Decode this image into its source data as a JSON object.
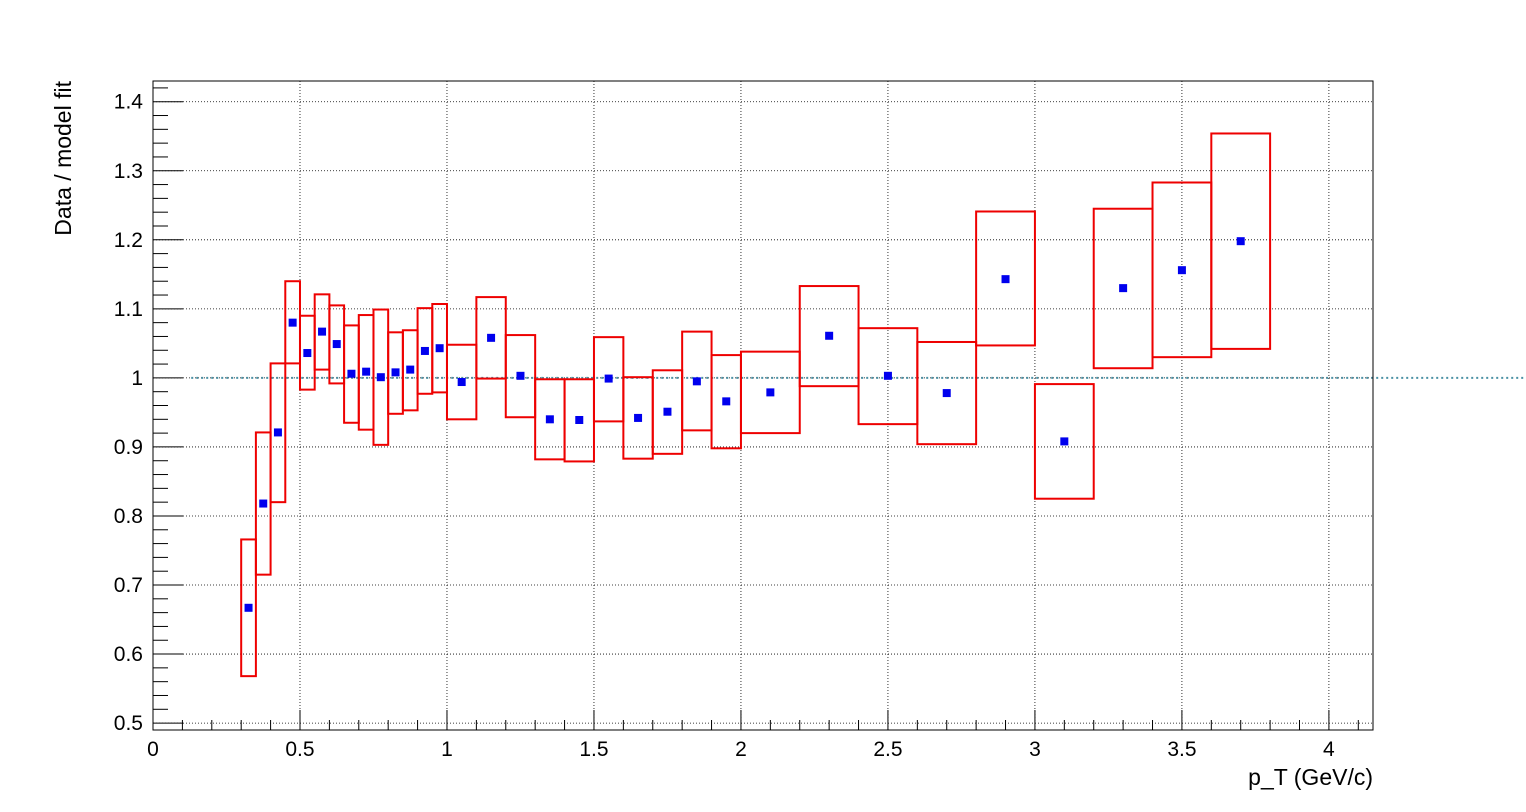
{
  "chart_data": {
    "type": "scatter",
    "title": "",
    "xlabel": "p_T (GeV/c)",
    "ylabel": "Data / model fit",
    "xlim": [
      0,
      4.15
    ],
    "ylim": [
      0.49,
      1.43
    ],
    "x_ticks": [
      0,
      0.5,
      1,
      1.5,
      2,
      2.5,
      3,
      3.5,
      4
    ],
    "x_tick_labels": [
      "0",
      "0.5",
      "1",
      "1.5",
      "2",
      "2.5",
      "3",
      "3.5",
      "4"
    ],
    "y_ticks": [
      0.5,
      0.6,
      0.7,
      0.8,
      0.9,
      1.0,
      1.1,
      1.2,
      1.3,
      1.4
    ],
    "y_tick_labels": [
      "0.5",
      "0.6",
      "0.7",
      "0.8",
      "0.9",
      "1",
      "1.1",
      "1.2",
      "1.3",
      "1.4"
    ],
    "grid": true,
    "reference_line": 1.0,
    "colors": {
      "points": "#0000ee",
      "boxes": "#ee0000",
      "reference": "#4a90a4"
    },
    "points": [
      {
        "x": 0.325,
        "y": 0.667,
        "xlo": 0.3,
        "xhi": 0.35,
        "ylo": 0.568,
        "yhi": 0.766
      },
      {
        "x": 0.375,
        "y": 0.818,
        "xlo": 0.35,
        "xhi": 0.4,
        "ylo": 0.715,
        "yhi": 0.921
      },
      {
        "x": 0.425,
        "y": 0.921,
        "xlo": 0.4,
        "xhi": 0.45,
        "ylo": 0.82,
        "yhi": 1.021
      },
      {
        "x": 0.475,
        "y": 1.08,
        "xlo": 0.45,
        "xhi": 0.5,
        "ylo": 1.021,
        "yhi": 1.14
      },
      {
        "x": 0.525,
        "y": 1.036,
        "xlo": 0.5,
        "xhi": 0.55,
        "ylo": 0.983,
        "yhi": 1.09
      },
      {
        "x": 0.575,
        "y": 1.067,
        "xlo": 0.55,
        "xhi": 0.6,
        "ylo": 1.012,
        "yhi": 1.121
      },
      {
        "x": 0.625,
        "y": 1.049,
        "xlo": 0.6,
        "xhi": 0.65,
        "ylo": 0.992,
        "yhi": 1.105
      },
      {
        "x": 0.675,
        "y": 1.006,
        "xlo": 0.65,
        "xhi": 0.7,
        "ylo": 0.935,
        "yhi": 1.076
      },
      {
        "x": 0.725,
        "y": 1.009,
        "xlo": 0.7,
        "xhi": 0.75,
        "ylo": 0.925,
        "yhi": 1.091
      },
      {
        "x": 0.775,
        "y": 1.001,
        "xlo": 0.75,
        "xhi": 0.8,
        "ylo": 0.903,
        "yhi": 1.099
      },
      {
        "x": 0.825,
        "y": 1.008,
        "xlo": 0.8,
        "xhi": 0.85,
        "ylo": 0.948,
        "yhi": 1.066
      },
      {
        "x": 0.875,
        "y": 1.012,
        "xlo": 0.85,
        "xhi": 0.9,
        "ylo": 0.953,
        "yhi": 1.069
      },
      {
        "x": 0.925,
        "y": 1.039,
        "xlo": 0.9,
        "xhi": 0.95,
        "ylo": 0.977,
        "yhi": 1.101
      },
      {
        "x": 0.975,
        "y": 1.043,
        "xlo": 0.95,
        "xhi": 1.0,
        "ylo": 0.979,
        "yhi": 1.107
      },
      {
        "x": 1.05,
        "y": 0.994,
        "xlo": 1.0,
        "xhi": 1.1,
        "ylo": 0.94,
        "yhi": 1.048
      },
      {
        "x": 1.15,
        "y": 1.058,
        "xlo": 1.1,
        "xhi": 1.2,
        "ylo": 0.999,
        "yhi": 1.117
      },
      {
        "x": 1.25,
        "y": 1.003,
        "xlo": 1.2,
        "xhi": 1.3,
        "ylo": 0.943,
        "yhi": 1.062
      },
      {
        "x": 1.35,
        "y": 0.94,
        "xlo": 1.3,
        "xhi": 1.4,
        "ylo": 0.882,
        "yhi": 0.998
      },
      {
        "x": 1.45,
        "y": 0.939,
        "xlo": 1.4,
        "xhi": 1.5,
        "ylo": 0.879,
        "yhi": 0.998
      },
      {
        "x": 1.55,
        "y": 0.999,
        "xlo": 1.5,
        "xhi": 1.6,
        "ylo": 0.937,
        "yhi": 1.059
      },
      {
        "x": 1.65,
        "y": 0.942,
        "xlo": 1.6,
        "xhi": 1.7,
        "ylo": 0.883,
        "yhi": 1.001
      },
      {
        "x": 1.75,
        "y": 0.951,
        "xlo": 1.7,
        "xhi": 1.8,
        "ylo": 0.89,
        "yhi": 1.011
      },
      {
        "x": 1.85,
        "y": 0.995,
        "xlo": 1.8,
        "xhi": 1.9,
        "ylo": 0.924,
        "yhi": 1.067
      },
      {
        "x": 1.95,
        "y": 0.966,
        "xlo": 1.9,
        "xhi": 2.0,
        "ylo": 0.898,
        "yhi": 1.033
      },
      {
        "x": 2.1,
        "y": 0.979,
        "xlo": 2.0,
        "xhi": 2.2,
        "ylo": 0.92,
        "yhi": 1.038
      },
      {
        "x": 2.3,
        "y": 1.061,
        "xlo": 2.2,
        "xhi": 2.4,
        "ylo": 0.988,
        "yhi": 1.133
      },
      {
        "x": 2.5,
        "y": 1.003,
        "xlo": 2.4,
        "xhi": 2.6,
        "ylo": 0.933,
        "yhi": 1.072
      },
      {
        "x": 2.7,
        "y": 0.978,
        "xlo": 2.6,
        "xhi": 2.8,
        "ylo": 0.904,
        "yhi": 1.052
      },
      {
        "x": 2.9,
        "y": 1.143,
        "xlo": 2.8,
        "xhi": 3.0,
        "ylo": 1.047,
        "yhi": 1.241
      },
      {
        "x": 3.1,
        "y": 0.908,
        "xlo": 3.0,
        "xhi": 3.2,
        "ylo": 0.825,
        "yhi": 0.991
      },
      {
        "x": 3.3,
        "y": 1.13,
        "xlo": 3.2,
        "xhi": 3.4,
        "ylo": 1.014,
        "yhi": 1.245
      },
      {
        "x": 3.5,
        "y": 1.156,
        "xlo": 3.4,
        "xhi": 3.6,
        "ylo": 1.03,
        "yhi": 1.283
      },
      {
        "x": 3.7,
        "y": 1.198,
        "xlo": 3.6,
        "xhi": 3.8,
        "ylo": 1.042,
        "yhi": 1.354
      }
    ]
  }
}
